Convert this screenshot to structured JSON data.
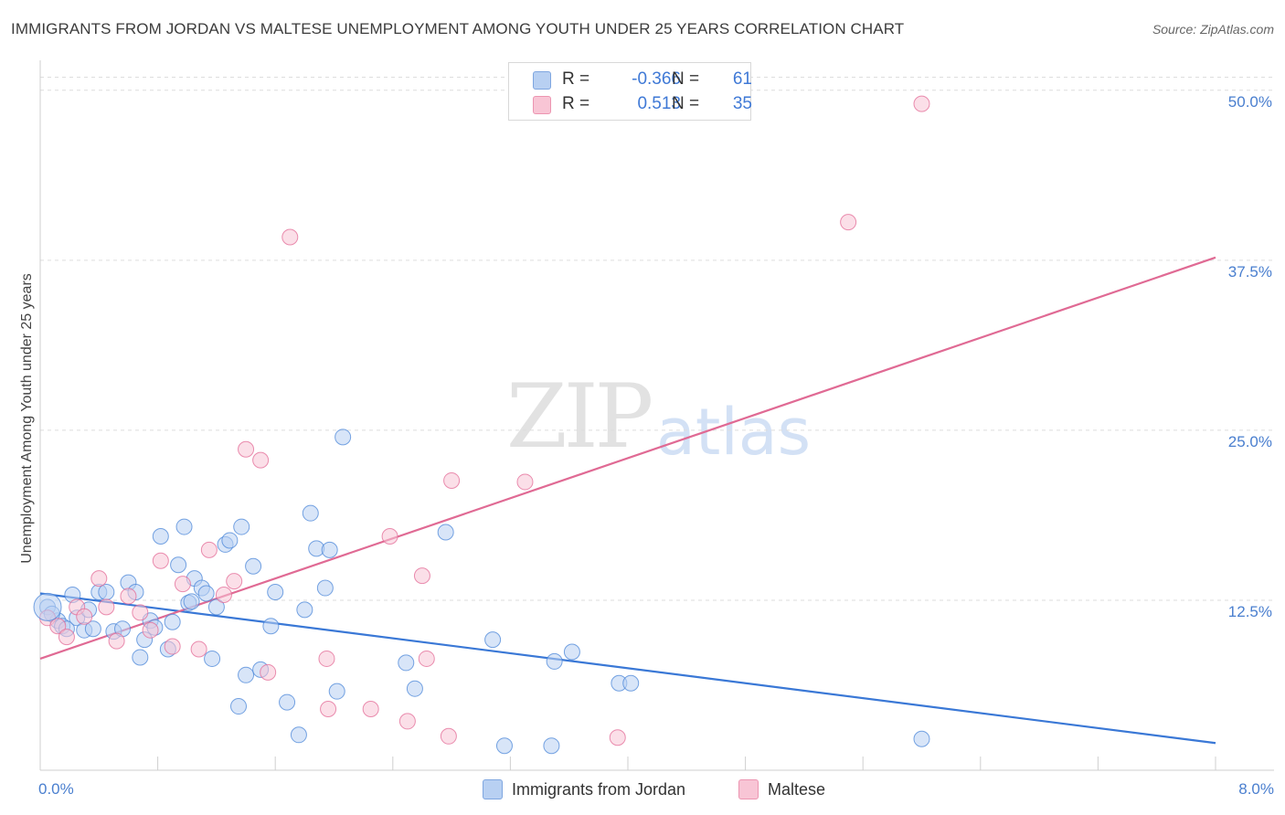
{
  "header": {
    "title": "IMMIGRANTS FROM JORDAN VS MALTESE UNEMPLOYMENT AMONG YOUTH UNDER 25 YEARS CORRELATION CHART",
    "source": "Source: ZipAtlas.com"
  },
  "watermark": {
    "zip": "ZIP",
    "atlas": "atlas"
  },
  "legend": {
    "series1": {
      "r_label": "R =",
      "r_value": "-0.366",
      "n_label": "N =",
      "n_value": "61",
      "color": "#a9c8f0"
    },
    "series2": {
      "r_label": "R =",
      "r_value": "0.513",
      "n_label": "N =",
      "n_value": "35",
      "color": "#f6b8cc"
    }
  },
  "bottom_legend": {
    "series1": "Immigrants from Jordan",
    "series2": "Maltese"
  },
  "chart_data": {
    "type": "scatter",
    "title": "IMMIGRANTS FROM JORDAN VS MALTESE UNEMPLOYMENT AMONG YOUTH UNDER 25 YEARS CORRELATION CHART",
    "xlabel": "",
    "ylabel": "Unemployment Among Youth under 25 years",
    "xlim": [
      0,
      8
    ],
    "ylim": [
      0,
      52
    ],
    "x_tick_labels": [
      "0.0%",
      "8.0%"
    ],
    "y_ticks": [
      12.5,
      25.0,
      37.5,
      50.0
    ],
    "y_tick_labels": [
      "12.5%",
      "25.0%",
      "37.5%",
      "50.0%"
    ],
    "grid": "horizontal dashed",
    "colors": {
      "blue": "#4a86d8",
      "blue_fill": "#b8d0f2",
      "pink": "#e36a95",
      "pink_fill": "#f8c5d5"
    },
    "series": [
      {
        "name": "Immigrants from Jordan",
        "color": "blue",
        "points": [
          [
            0.05,
            12.0
          ],
          [
            0.12,
            11.0
          ],
          [
            0.15,
            10.6
          ],
          [
            0.18,
            10.4
          ],
          [
            0.22,
            12.9
          ],
          [
            0.25,
            11.2
          ],
          [
            0.3,
            10.3
          ],
          [
            0.33,
            11.8
          ],
          [
            0.4,
            13.1
          ],
          [
            0.45,
            13.1
          ],
          [
            0.5,
            10.2
          ],
          [
            0.56,
            10.4
          ],
          [
            0.6,
            13.8
          ],
          [
            0.65,
            13.1
          ],
          [
            0.68,
            8.3
          ],
          [
            0.71,
            9.6
          ],
          [
            0.75,
            11.0
          ],
          [
            0.78,
            10.5
          ],
          [
            0.82,
            17.2
          ],
          [
            0.87,
            8.9
          ],
          [
            0.9,
            10.9
          ],
          [
            0.94,
            15.1
          ],
          [
            0.98,
            17.9
          ],
          [
            1.01,
            12.3
          ],
          [
            1.05,
            14.1
          ],
          [
            1.1,
            13.4
          ],
          [
            1.13,
            13.0
          ],
          [
            1.17,
            8.2
          ],
          [
            1.2,
            12.0
          ],
          [
            1.26,
            16.6
          ],
          [
            1.29,
            16.9
          ],
          [
            1.35,
            4.7
          ],
          [
            1.37,
            17.9
          ],
          [
            1.4,
            7.0
          ],
          [
            1.45,
            15.0
          ],
          [
            1.5,
            7.4
          ],
          [
            1.57,
            10.6
          ],
          [
            1.6,
            13.1
          ],
          [
            1.68,
            5.0
          ],
          [
            1.76,
            2.6
          ],
          [
            1.8,
            11.8
          ],
          [
            1.84,
            18.9
          ],
          [
            1.88,
            16.3
          ],
          [
            1.94,
            13.4
          ],
          [
            1.97,
            16.2
          ],
          [
            2.02,
            5.8
          ],
          [
            2.06,
            24.5
          ],
          [
            2.49,
            7.9
          ],
          [
            2.55,
            6.0
          ],
          [
            2.76,
            17.5
          ],
          [
            3.08,
            9.6
          ],
          [
            3.16,
            1.8
          ],
          [
            3.48,
            1.8
          ],
          [
            3.5,
            8.0
          ],
          [
            3.62,
            8.7
          ],
          [
            3.94,
            6.4
          ],
          [
            4.02,
            6.4
          ],
          [
            6.0,
            2.3
          ],
          [
            0.08,
            11.5
          ],
          [
            0.36,
            10.4
          ],
          [
            1.03,
            12.4
          ]
        ],
        "trendline": {
          "x": [
            0,
            8
          ],
          "y": [
            13.0,
            2.0
          ]
        }
      },
      {
        "name": "Maltese",
        "color": "pink",
        "points": [
          [
            0.05,
            11.2
          ],
          [
            0.12,
            10.6
          ],
          [
            0.18,
            9.8
          ],
          [
            0.25,
            12.0
          ],
          [
            0.3,
            11.3
          ],
          [
            0.4,
            14.1
          ],
          [
            0.45,
            12.0
          ],
          [
            0.52,
            9.5
          ],
          [
            0.6,
            12.8
          ],
          [
            0.68,
            11.6
          ],
          [
            0.75,
            10.3
          ],
          [
            0.82,
            15.4
          ],
          [
            0.9,
            9.1
          ],
          [
            0.97,
            13.7
          ],
          [
            1.08,
            8.9
          ],
          [
            1.15,
            16.2
          ],
          [
            1.25,
            12.9
          ],
          [
            1.32,
            13.9
          ],
          [
            1.4,
            23.6
          ],
          [
            1.5,
            22.8
          ],
          [
            1.55,
            7.2
          ],
          [
            1.7,
            39.2
          ],
          [
            1.95,
            8.2
          ],
          [
            1.96,
            4.5
          ],
          [
            2.25,
            4.5
          ],
          [
            2.38,
            17.2
          ],
          [
            2.5,
            3.6
          ],
          [
            2.6,
            14.3
          ],
          [
            2.63,
            8.2
          ],
          [
            2.78,
            2.5
          ],
          [
            2.8,
            21.3
          ],
          [
            3.3,
            21.2
          ],
          [
            3.93,
            2.4
          ],
          [
            5.5,
            40.3
          ],
          [
            6.0,
            49.0
          ]
        ],
        "trendline": {
          "x": [
            0,
            8
          ],
          "y": [
            8.2,
            37.7
          ]
        }
      }
    ]
  }
}
